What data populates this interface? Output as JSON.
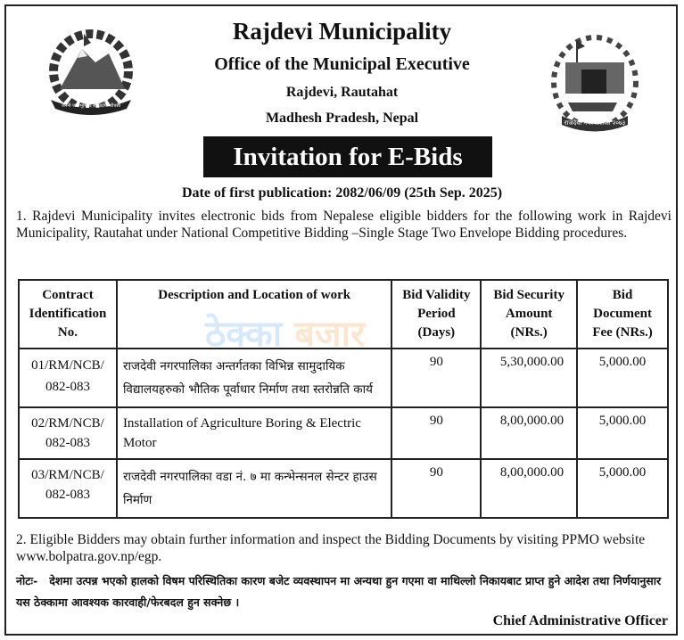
{
  "header": {
    "title": "Rajdevi Municipality",
    "office": "Office of  the Municipal Executive",
    "address1": "Rajdevi, Rautahat",
    "address2": "Madhesh Pradesh, Nepal",
    "banner": "Invitation for E-Bids",
    "publication": "Date of first publication: 2082/06/09 (25th Sep. 2025)",
    "left_logo_text": "जननी जन्मभूमिश्च स्वर्गादपि गरीयसी",
    "right_logo_text": "राजदेवी नगरपालिका २०७३"
  },
  "watermark": {
    "part1": "ठेक्का",
    "part2": "बजार",
    "color1": "#1e88e5",
    "color2": "#f57c00"
  },
  "para1": "1.  Rajdevi Municipality invites electronic bids from Nepalese eligible bidders for the following work in Rajdevi Municipality, Rautahat  under National Competitive Bidding –Single Stage Two Envelope Bidding procedures.",
  "table": {
    "headers": [
      "Contract Identification No.",
      "Description and Location of work",
      "Bid Validity Period (Days)",
      "Bid Security Amount (NRs.)",
      "Bid Document Fee (NRs.)"
    ],
    "rows": [
      {
        "id": "01/RM/NCB/ 082-083",
        "desc": "राजदेवी नगरपालिका अन्तर्गतका विभिन्न सामुदायिक विद्यालयहरुको भौतिक पूर्वाधार निर्माण तथा स्तरोन्नति कार्य",
        "validity": "90",
        "security": "5,30,000.00",
        "fee": "5,000.00"
      },
      {
        "id": "02/RM/NCB/ 082-083",
        "desc": "Installation of Agriculture Boring & Electric Motor",
        "validity": "90",
        "security": "8,00,000.00",
        "fee": "5,000.00"
      },
      {
        "id": "03/RM/NCB/ 082-083",
        "desc": "राजदेवी नगरपालिका वडा नं. ७ मा कन्भेन्सनल सेन्टर हाउस निर्माण",
        "validity": "90",
        "security": "8,00,000.00",
        "fee": "5,000.00"
      }
    ]
  },
  "para2": "2.  Eligible Bidders may obtain further information and inspect the Bidding Documents by visiting PPMO website www.bolpatra.gov.np/egp.",
  "note_label": "नोटः-",
  "note": "देशमा उत्पन्न भएको हालको विषम परिस्थितिका कारण बजेट व्यवस्थापन मा अन्यथा हुन गएमा वा माथिल्लो निकायबाट प्राप्त हुने आदेश तथा निर्णयानुसार यस ठेक्कामा आवश्यक कारवाही/फेरबदल हुन सक्नेछ ।",
  "signature": "Chief Administrative Officer"
}
